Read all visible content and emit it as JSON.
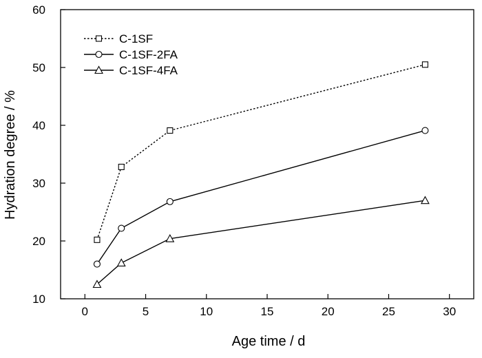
{
  "chart_data": {
    "type": "line",
    "title": "",
    "xlabel": "Age time / d",
    "ylabel": "Hydration degree / %",
    "xlim": [
      -2,
      32
    ],
    "ylim": [
      10,
      60
    ],
    "xticks": [
      "0",
      "5",
      "10",
      "15",
      "20",
      "25",
      "30"
    ],
    "yticks": [
      "10",
      "20",
      "30",
      "40",
      "50",
      "60"
    ],
    "grid": false,
    "legend_position": "top-left",
    "series": [
      {
        "name": "C-1SF",
        "marker": "square",
        "line_style": "dotted",
        "x": [
          1,
          3,
          7,
          28
        ],
        "y": [
          20.2,
          32.8,
          39.1,
          50.5
        ]
      },
      {
        "name": "C-1SF-2FA",
        "marker": "circle",
        "line_style": "solid",
        "x": [
          1,
          3,
          7,
          28
        ],
        "y": [
          16.0,
          22.2,
          26.8,
          39.1
        ]
      },
      {
        "name": "C-1SF-4FA",
        "marker": "triangle",
        "line_style": "solid",
        "x": [
          1,
          3,
          7,
          28
        ],
        "y": [
          12.5,
          16.2,
          20.4,
          27.0
        ]
      }
    ]
  }
}
